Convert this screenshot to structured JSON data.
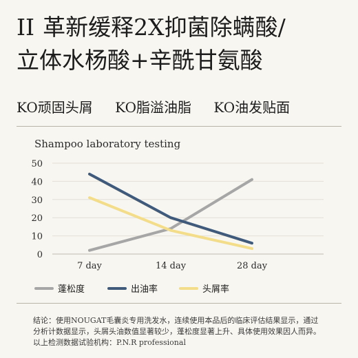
{
  "headline": {
    "numeral": "II",
    "line1": "革新缓释2X抑菌除螨酸/",
    "line2": "立体水杨酸+辛酰甘氨酸"
  },
  "ko_items": [
    "KO顽固头屑",
    "KO脂溢油脂",
    "KO油发贴面"
  ],
  "chart_data": {
    "type": "line",
    "title": "Shampoo laboratory testing",
    "xlabel": "",
    "ylabel": "",
    "categories": [
      "7 day",
      "14 day",
      "28 day"
    ],
    "ylim": [
      0,
      50
    ],
    "yticks": [
      0,
      10,
      20,
      30,
      40,
      50
    ],
    "grid": true,
    "legend_position": "bottom",
    "series": [
      {
        "name": "蓬松度",
        "color": "#a6a6a6",
        "values": [
          2,
          14,
          41
        ]
      },
      {
        "name": "出油率",
        "color": "#3f5a7a",
        "values": [
          44,
          20,
          6
        ]
      },
      {
        "name": "头屑率",
        "color": "#f3dd8a",
        "values": [
          31,
          13,
          3
        ]
      }
    ]
  },
  "footnote": {
    "line1": "结论：使用NOUGAT毛囊炎专用洗发水，连续使用本品后的临床评估结果显示，通过",
    "line2": "分析计数据显示，头屑头油数值显著较少，蓬松度显著上升、具体使用效果因人而异。",
    "line3": "以上检测数据试验机构：P.N.R professional"
  }
}
